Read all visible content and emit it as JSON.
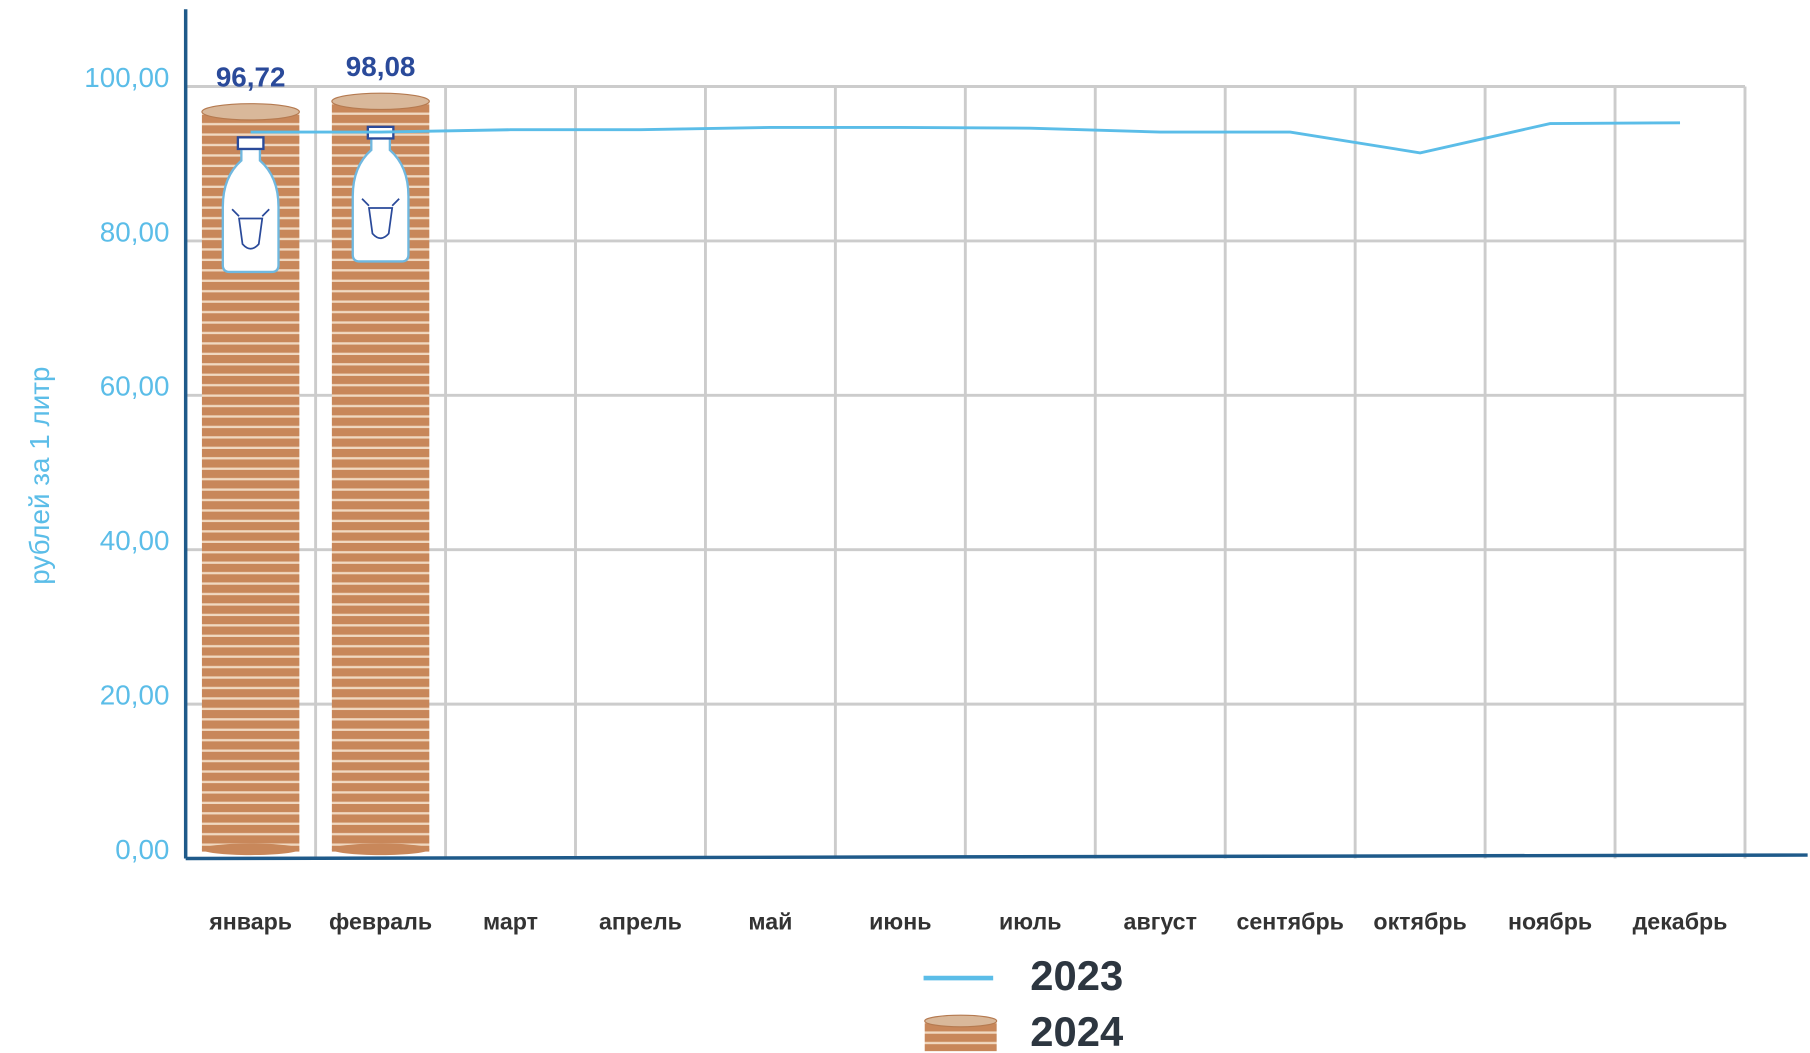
{
  "chart_data": {
    "type": "bar_line",
    "y_label": "рублей за 1 литр",
    "categories": [
      "январь",
      "февраль",
      "март",
      "апрель",
      "май",
      "июнь",
      "июль",
      "август",
      "сентябрь",
      "октябрь",
      "ноябрь",
      "декабрь"
    ],
    "series": [
      {
        "name": "2023",
        "type": "line",
        "color": "#5bbde8",
        "values": [
          94.1,
          94.1,
          94.4,
          94.4,
          94.7,
          94.7,
          94.6,
          94.1,
          94.1,
          91.4,
          95.2,
          95.3
        ]
      },
      {
        "name": "2024",
        "type": "bar",
        "color": "#c8875a",
        "values": [
          96.72,
          98.08,
          null,
          null,
          null,
          null,
          null,
          null,
          null,
          null,
          null,
          null
        ],
        "value_labels": [
          "96,72",
          "98,08",
          null,
          null,
          null,
          null,
          null,
          null,
          null,
          null,
          null,
          null
        ]
      }
    ],
    "ylim": [
      0,
      110
    ],
    "yticks": [
      {
        "value": 0,
        "label": "0,00"
      },
      {
        "value": 20,
        "label": "20,00"
      },
      {
        "value": 40,
        "label": "40,00"
      },
      {
        "value": 60,
        "label": "60,00"
      },
      {
        "value": 80,
        "label": "80,00"
      },
      {
        "value": 100,
        "label": "100,00"
      }
    ],
    "grid": true
  }
}
